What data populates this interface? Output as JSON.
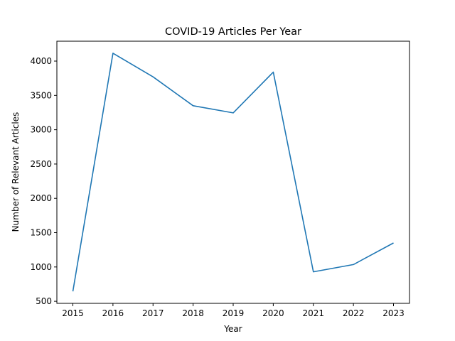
{
  "chart_data": {
    "type": "line",
    "title": "COVID-19 Articles Per Year",
    "xlabel": "Year",
    "ylabel": "Number of Relevant Articles",
    "x": [
      "2015",
      "2016",
      "2017",
      "2018",
      "2019",
      "2020",
      "2021",
      "2022",
      "2023"
    ],
    "series": [
      {
        "values": [
          645,
          4115,
          3770,
          3350,
          3245,
          3840,
          930,
          1035,
          1350
        ],
        "color": "#1f77b4"
      }
    ],
    "yticks": [
      500,
      1000,
      1500,
      2000,
      2500,
      3000,
      3500,
      4000
    ],
    "ylim": [
      470,
      4290
    ],
    "grid": false,
    "legend": false
  }
}
